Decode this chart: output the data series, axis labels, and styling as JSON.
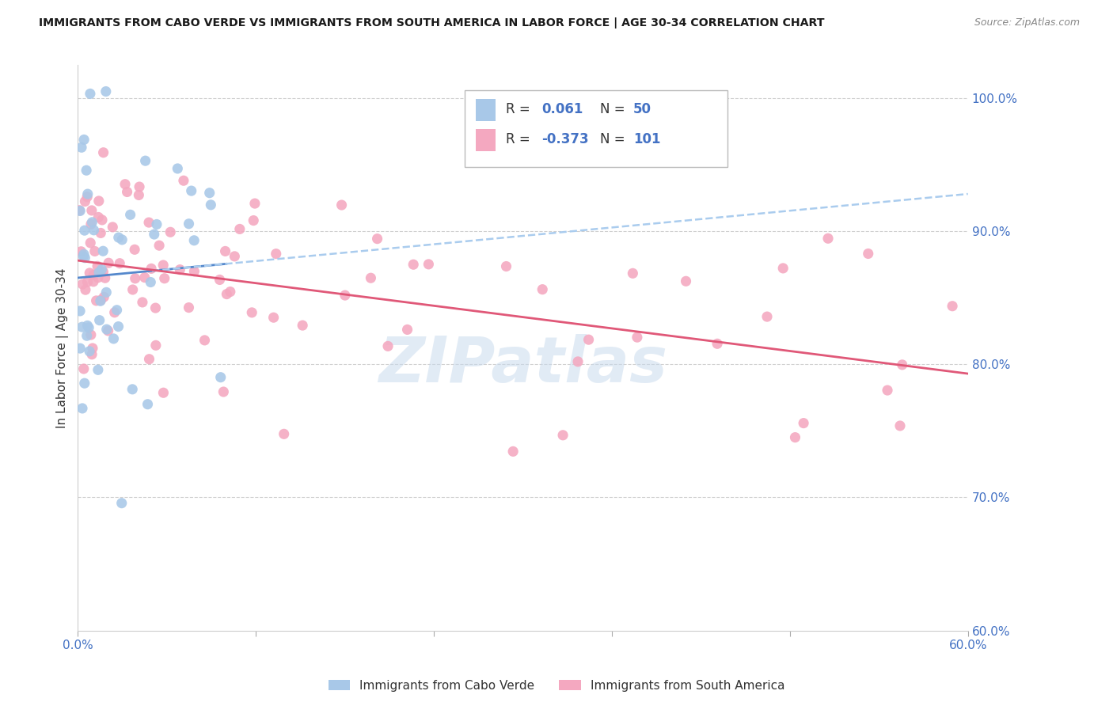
{
  "title": "IMMIGRANTS FROM CABO VERDE VS IMMIGRANTS FROM SOUTH AMERICA IN LABOR FORCE | AGE 30-34 CORRELATION CHART",
  "source": "Source: ZipAtlas.com",
  "ylabel": "In Labor Force | Age 30-34",
  "xlim": [
    0.0,
    0.6
  ],
  "ylim": [
    0.6,
    1.025
  ],
  "yticks": [
    0.6,
    0.7,
    0.8,
    0.9,
    1.0
  ],
  "xticks": [
    0.0,
    0.12,
    0.24,
    0.36,
    0.48,
    0.6
  ],
  "xtick_labels": [
    "0.0%",
    "",
    "",
    "",
    "",
    "60.0%"
  ],
  "ytick_labels": [
    "60.0%",
    "70.0%",
    "80.0%",
    "90.0%",
    "100.0%"
  ],
  "cabo_verde_R": 0.061,
  "cabo_verde_N": 50,
  "south_america_R": -0.373,
  "south_america_N": 101,
  "cabo_verde_color": "#a8c8e8",
  "south_america_color": "#f4a8c0",
  "cabo_verde_line_color": "#5588cc",
  "cabo_verde_dash_color": "#aaccee",
  "south_america_line_color": "#e05878",
  "axis_color": "#4472c4",
  "text_color": "#333333",
  "grid_color": "#d0d0d0",
  "watermark": "ZIPatlas",
  "legend_R_label": "R = ",
  "legend_N_label": "N = ",
  "cabo_verde_label": "Immigrants from Cabo Verde",
  "south_america_label": "Immigrants from South America",
  "cv_trend_x0": 0.0,
  "cv_trend_y0": 0.865,
  "cv_trend_x1": 0.6,
  "cv_trend_y1": 0.928,
  "sa_trend_x0": 0.0,
  "sa_trend_y0": 0.878,
  "sa_trend_x1": 0.6,
  "sa_trend_y1": 0.793
}
